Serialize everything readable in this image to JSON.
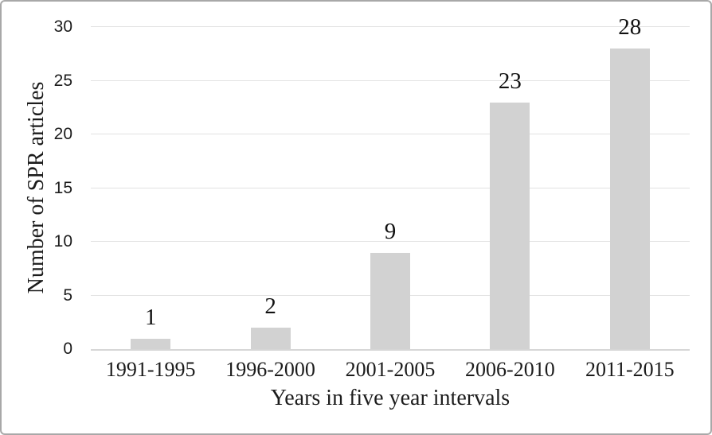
{
  "figure": {
    "background": "#ffffff",
    "border_color": "#a8a8a8"
  },
  "chart_data": {
    "type": "bar",
    "title": "",
    "categories": [
      "1991-1995",
      "1996-2000",
      "2001-2005",
      "2006-2010",
      "2011-2015"
    ],
    "values": [
      1,
      2,
      9,
      23,
      28
    ],
    "data_labels": [
      "1",
      "2",
      "9",
      "23",
      "28"
    ],
    "xlabel": "Years in five year intervals",
    "ylabel": "Number of SPR articles",
    "ylim": [
      0,
      30
    ],
    "yticks": [
      0,
      5,
      10,
      15,
      20,
      25,
      30
    ],
    "grid": true,
    "legend_position": "none",
    "bar_color": "#d2d2d2",
    "gridline_color": "#e2e2e2",
    "axis_line_color": "#d6d6d6",
    "text_color": "#1c1c1c"
  }
}
